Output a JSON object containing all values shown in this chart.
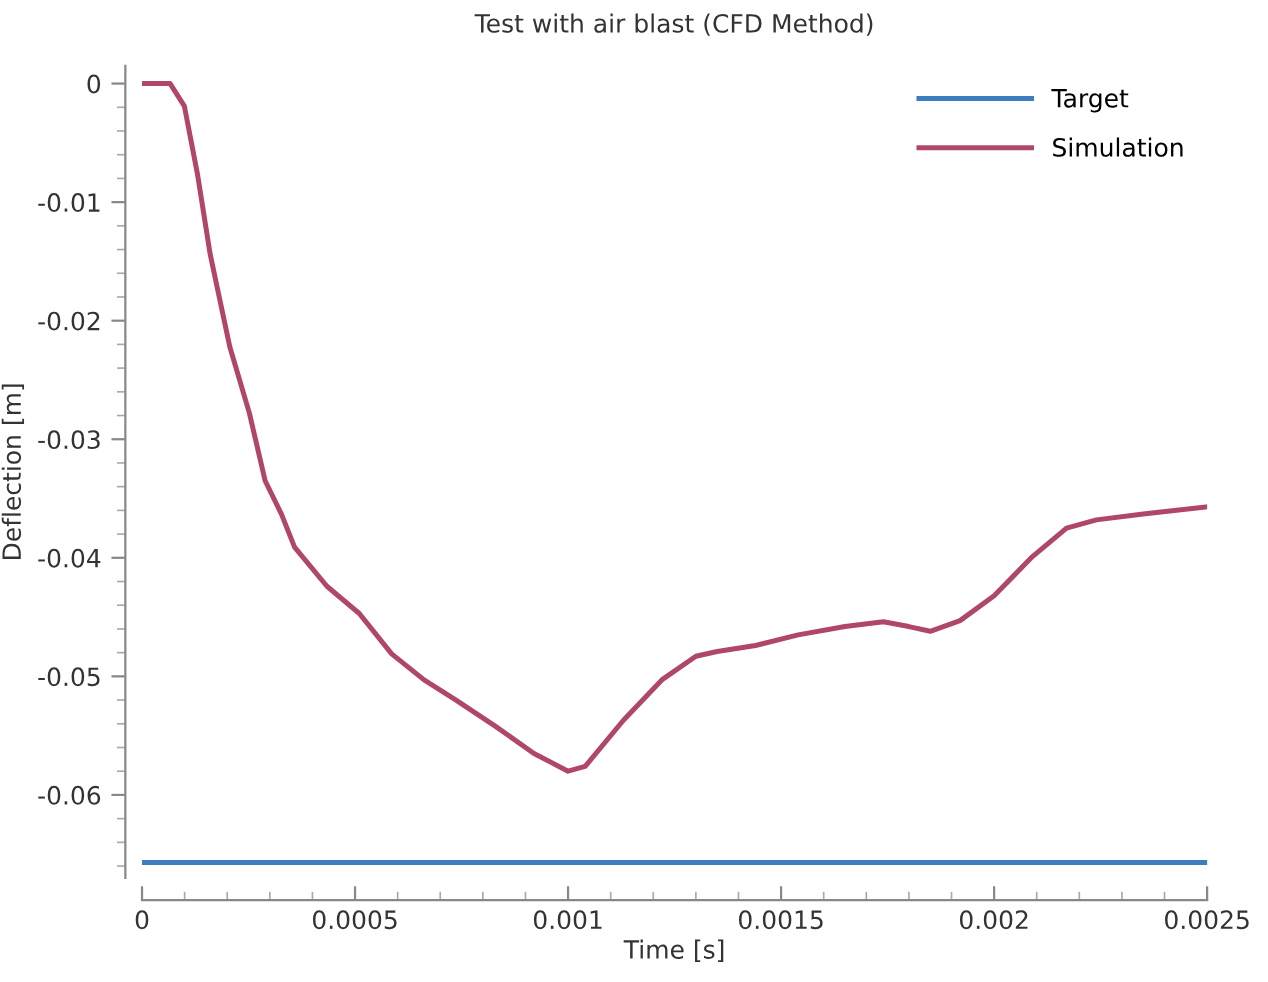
{
  "chart_data": {
    "type": "line",
    "title": "Test with air blast (CFD Method)",
    "xlabel": "Time [s]",
    "ylabel": "Deflection [m]",
    "xlim": [
      0,
      0.0025
    ],
    "xticks": [
      0,
      0.0005,
      0.001,
      0.0015,
      0.002,
      0.0025
    ],
    "ylim": [
      -0.067,
      0.0015
    ],
    "yticks": [
      -0.06,
      -0.05,
      -0.04,
      -0.03,
      -0.02,
      -0.01,
      0
    ],
    "grid": false,
    "legend": "top right",
    "marker": "none",
    "line_style": "solid",
    "series": [
      {
        "name": "Target",
        "color": "#3d7ebf",
        "x": [
          0,
          0.0025
        ],
        "values": [
          -0.0657,
          -0.0657
        ]
      },
      {
        "name": "Simulation",
        "color": "#b0476b",
        "x": [
          0,
          6.6e-05,
          9.94e-05,
          0.00013,
          0.00016,
          0.000206,
          0.000252,
          0.000289,
          0.000327,
          0.000358,
          0.000434,
          0.00051,
          0.000586,
          0.000662,
          0.000737,
          0.000829,
          0.00092,
          0.001,
          0.00104,
          0.00113,
          0.00122,
          0.0013,
          0.00135,
          0.00144,
          0.00154,
          0.00165,
          0.00174,
          0.0018,
          0.00185,
          0.00192,
          0.002,
          0.00209,
          0.00217,
          0.00224,
          0.00235,
          0.0025
        ],
        "values": [
          0,
          0,
          -0.0019,
          -0.0076,
          -0.0144,
          -0.0222,
          -0.0278,
          -0.0335,
          -0.0363,
          -0.0391,
          -0.0424,
          -0.0447,
          -0.0481,
          -0.0503,
          -0.052,
          -0.0542,
          -0.0565,
          -0.058,
          -0.0576,
          -0.0537,
          -0.0503,
          -0.0483,
          -0.0479,
          -0.0474,
          -0.0465,
          -0.0458,
          -0.0454,
          -0.0458,
          -0.0462,
          -0.0453,
          -0.0432,
          -0.0399,
          -0.0375,
          -0.0368,
          -0.0363,
          -0.0357
        ]
      }
    ]
  }
}
